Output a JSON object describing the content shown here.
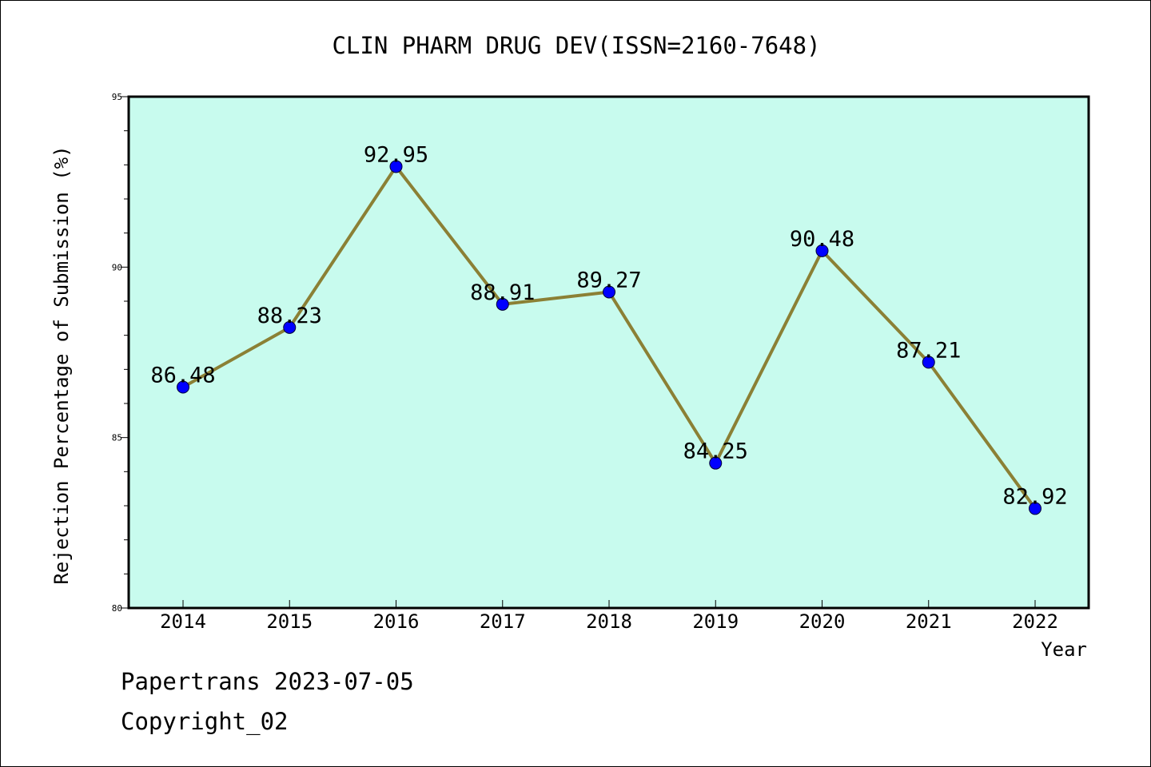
{
  "chart_data": {
    "type": "line",
    "title": "CLIN PHARM DRUG DEV(ISSN=2160-7648)",
    "xlabel": "Year",
    "ylabel": "Rejection Percentage of Submission (%)",
    "categories": [
      "2014",
      "2015",
      "2016",
      "2017",
      "2018",
      "2019",
      "2020",
      "2021",
      "2022"
    ],
    "series": [
      {
        "values": [
          86.48,
          88.23,
          92.95,
          88.91,
          89.27,
          84.25,
          90.48,
          87.21,
          82.92
        ],
        "labels": [
          "86.48",
          "88.23",
          "92.95",
          "88.91",
          "89.27",
          "84.25",
          "90.48",
          "87.21",
          "82.92"
        ],
        "line_color": "#8b8035",
        "marker_color": "#0000ff"
      }
    ],
    "ylim": [
      80,
      95
    ],
    "yticks": [
      "80",
      "85",
      "90",
      "95"
    ],
    "plot_background": "#c8fbee",
    "grid": false
  },
  "footer": {
    "line1": "Papertrans 2023-07-05",
    "line2": "Copyright_02"
  }
}
